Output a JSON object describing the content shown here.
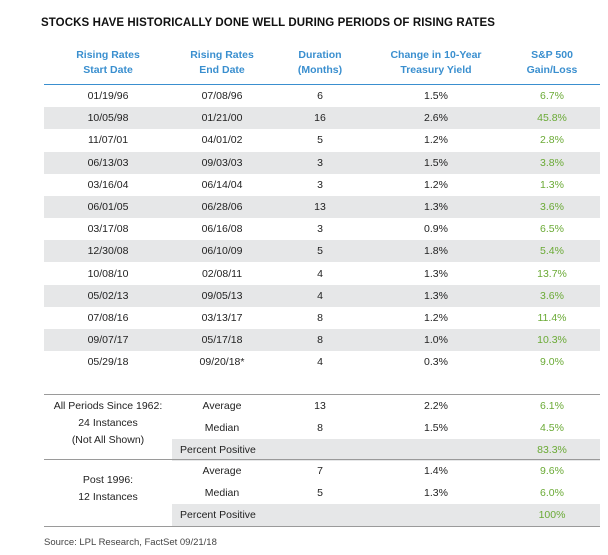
{
  "title": "STOCKS HAVE HISTORICALLY DONE WELL DURING PERIODS OF RISING RATES",
  "columns": [
    [
      "Rising Rates",
      "Start Date"
    ],
    [
      "Rising Rates",
      "End Date"
    ],
    [
      "Duration",
      "(Months)"
    ],
    [
      "Change in 10-Year",
      "Treasury Yield"
    ],
    [
      "S&P 500",
      "Gain/Loss"
    ]
  ],
  "rows": [
    [
      "01/19/96",
      "07/08/96",
      "6",
      "1.5%",
      "6.7%"
    ],
    [
      "10/05/98",
      "01/21/00",
      "16",
      "2.6%",
      "45.8%"
    ],
    [
      "11/07/01",
      "04/01/02",
      "5",
      "1.2%",
      "2.8%"
    ],
    [
      "06/13/03",
      "09/03/03",
      "3",
      "1.5%",
      "3.8%"
    ],
    [
      "03/16/04",
      "06/14/04",
      "3",
      "1.2%",
      "1.3%"
    ],
    [
      "06/01/05",
      "06/28/06",
      "13",
      "1.3%",
      "3.6%"
    ],
    [
      "03/17/08",
      "06/16/08",
      "3",
      "0.9%",
      "6.5%"
    ],
    [
      "12/30/08",
      "06/10/09",
      "5",
      "1.8%",
      "5.4%"
    ],
    [
      "10/08/10",
      "02/08/11",
      "4",
      "1.3%",
      "13.7%"
    ],
    [
      "05/02/13",
      "09/05/13",
      "4",
      "1.3%",
      "3.6%"
    ],
    [
      "07/08/16",
      "03/13/17",
      "8",
      "1.2%",
      "11.4%"
    ],
    [
      "09/07/17",
      "05/17/18",
      "8",
      "1.0%",
      "10.3%"
    ],
    [
      "05/29/18",
      "09/20/18*",
      "4",
      "0.3%",
      "9.0%"
    ]
  ],
  "groups": [
    {
      "label_lines": [
        "All Periods Since 1962:",
        "24 Instances",
        "(Not All Shown)"
      ],
      "stats": [
        {
          "label": "Average",
          "duration": "13",
          "yield": "2.2%",
          "gain": "6.1%"
        },
        {
          "label": "Median",
          "duration": "8",
          "yield": "1.5%",
          "gain": "4.5%"
        }
      ],
      "percent_label": "Percent Positive",
      "percent_value": "83.3%"
    },
    {
      "label_lines": [
        "Post 1996:",
        "12 Instances"
      ],
      "stats": [
        {
          "label": "Average",
          "duration": "7",
          "yield": "1.4%",
          "gain": "9.6%"
        },
        {
          "label": "Median",
          "duration": "5",
          "yield": "1.3%",
          "gain": "6.0%"
        }
      ],
      "percent_label": "Percent Positive",
      "percent_value": "100%"
    }
  ],
  "source": "Source: LPL Research, FactSet  09/21/18"
}
